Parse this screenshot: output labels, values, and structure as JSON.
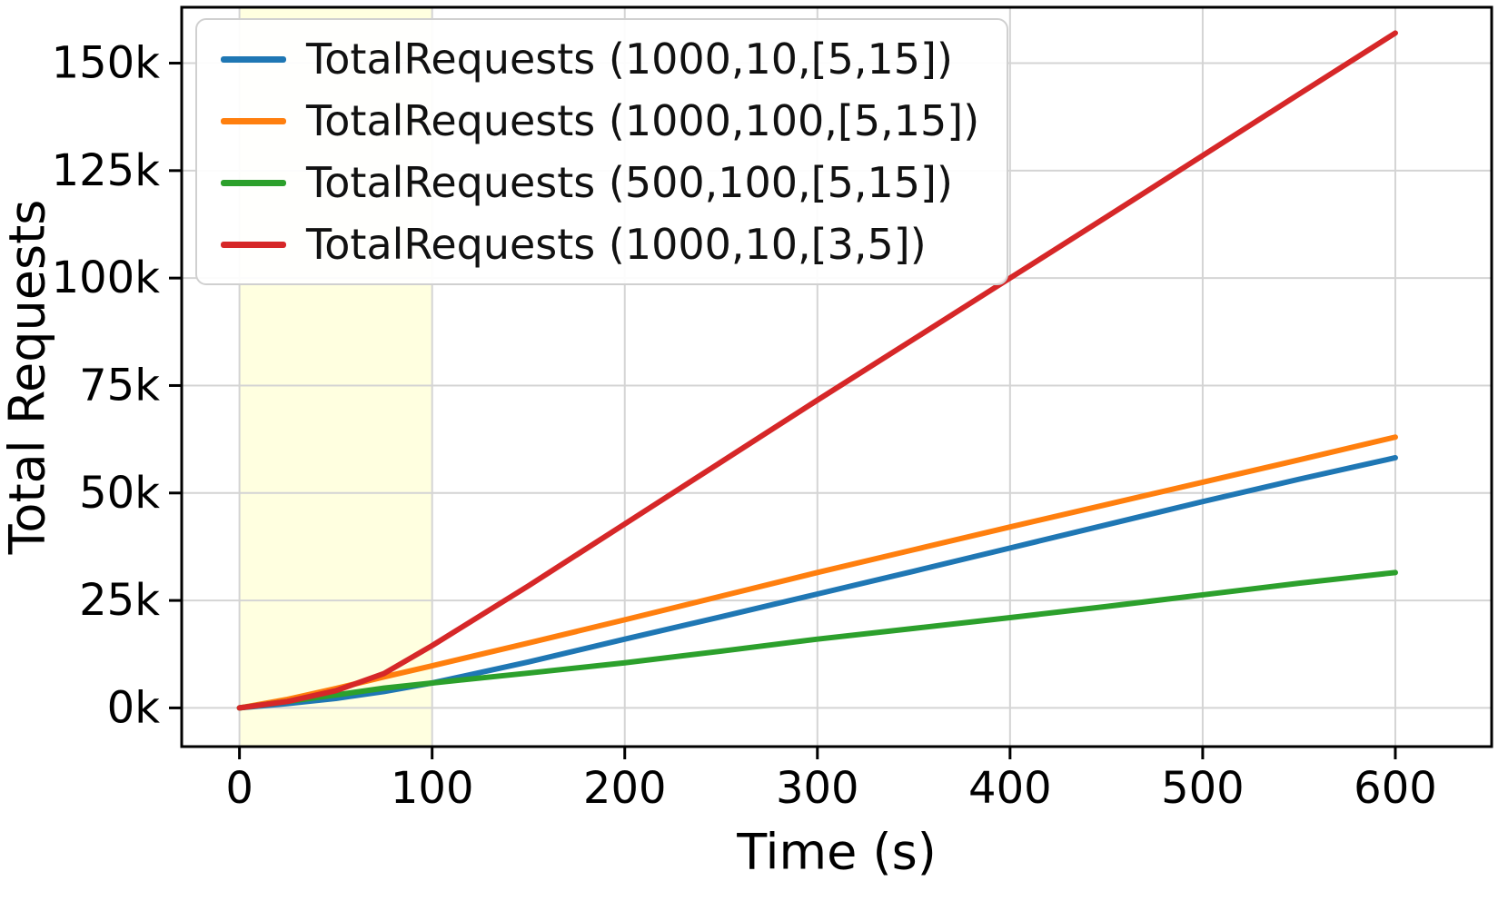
{
  "chart_data": {
    "type": "line",
    "title": "",
    "xlabel": "Time (s)",
    "ylabel": "Total Requests",
    "grid": true,
    "legend_position": "upper-left",
    "xlim": [
      -30,
      650
    ],
    "ylim": [
      -9000,
      163000
    ],
    "xticks": {
      "values": [
        0,
        100,
        200,
        300,
        400,
        500,
        600
      ],
      "labels": [
        "0",
        "100",
        "200",
        "300",
        "400",
        "500",
        "600"
      ]
    },
    "yticks": {
      "values": [
        0,
        25000,
        50000,
        75000,
        100000,
        125000,
        150000
      ],
      "labels": [
        "0k",
        "25k",
        "50k",
        "75k",
        "100k",
        "125k",
        "150k"
      ]
    },
    "highlight_region": {
      "x_start": 0,
      "x_end": 100,
      "color": "#ffffe0"
    },
    "colors": {
      "grid": "#d4d4d4",
      "axis": "#000000",
      "blue": "#1f77b4",
      "orange": "#ff7f0e",
      "green": "#2ca02c",
      "red": "#d62728"
    },
    "x": [
      0,
      25,
      50,
      75,
      100,
      150,
      200,
      250,
      300,
      350,
      400,
      450,
      500,
      550,
      600
    ],
    "series": [
      {
        "name": "TotalRequests (1000,10,[5,15])",
        "color": "#1f77b4",
        "values": [
          0,
          1000,
          2200,
          3800,
          5800,
          10700,
          16000,
          21200,
          26500,
          31800,
          37200,
          42600,
          48000,
          53200,
          58200
        ]
      },
      {
        "name": "TotalRequests (1000,100,[5,15])",
        "color": "#ff7f0e",
        "values": [
          0,
          2000,
          4500,
          7200,
          9800,
          15100,
          20500,
          26000,
          31500,
          36800,
          42100,
          47300,
          52500,
          57700,
          63000
        ]
      },
      {
        "name": "TotalRequests (500,100,[5,15])",
        "color": "#2ca02c",
        "values": [
          0,
          1500,
          3000,
          4600,
          5800,
          8100,
          10500,
          13200,
          16000,
          18500,
          21000,
          23600,
          26300,
          29000,
          31500
        ]
      },
      {
        "name": "TotalRequests (1000,10,[3,5])",
        "color": "#d62728",
        "values": [
          0,
          1500,
          4000,
          8000,
          14500,
          28400,
          42800,
          57200,
          71600,
          85800,
          100000,
          114200,
          128500,
          142800,
          157000
        ]
      }
    ]
  }
}
